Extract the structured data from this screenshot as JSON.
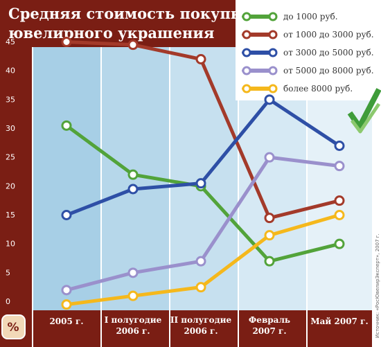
{
  "chart_data": {
    "type": "line",
    "title": "Средняя стоимость покупки ювелирного украшения",
    "unit_badge": "%",
    "source": "Источник: «РосЮвелирЭксперт», 2007 г.",
    "categories": [
      "2005 г.",
      "I полугодие 2006 г.",
      "II полугодие 2006 г.",
      "Февраль 2007 г.",
      "Май 2007 г."
    ],
    "category_lines": [
      [
        "2005 г."
      ],
      [
        "I полугодие",
        "2006 г."
      ],
      [
        "II полугодие",
        "2006 г."
      ],
      [
        "Февраль",
        "2007 г."
      ],
      [
        "Май 2007 г."
      ]
    ],
    "yticks": [
      0,
      5,
      10,
      15,
      20,
      25,
      30,
      35,
      40,
      45
    ],
    "ylim": [
      0,
      48
    ],
    "grid": false,
    "legend_position": "top-right",
    "series": [
      {
        "name": "до 1000 руб.",
        "color": "#52a33a",
        "values": [
          32,
          23.5,
          21.5,
          8.5,
          11.5
        ]
      },
      {
        "name": "от 1000 до 3000 руб.",
        "color": "#a33a2a",
        "values": [
          46.5,
          46,
          43.5,
          16,
          19
        ]
      },
      {
        "name": "от 3000 до 5000 руб.",
        "color": "#2e4fa6",
        "values": [
          16.5,
          21,
          22,
          36.5,
          28.5
        ]
      },
      {
        "name": "от 5000 до 8000 руб.",
        "color": "#9a90cc",
        "values": [
          3.5,
          6.5,
          8.5,
          26.5,
          25
        ]
      },
      {
        "name": "более 8000 руб.",
        "color": "#f5b81c",
        "values": [
          1,
          2.5,
          4,
          13,
          16.5
        ]
      }
    ]
  }
}
